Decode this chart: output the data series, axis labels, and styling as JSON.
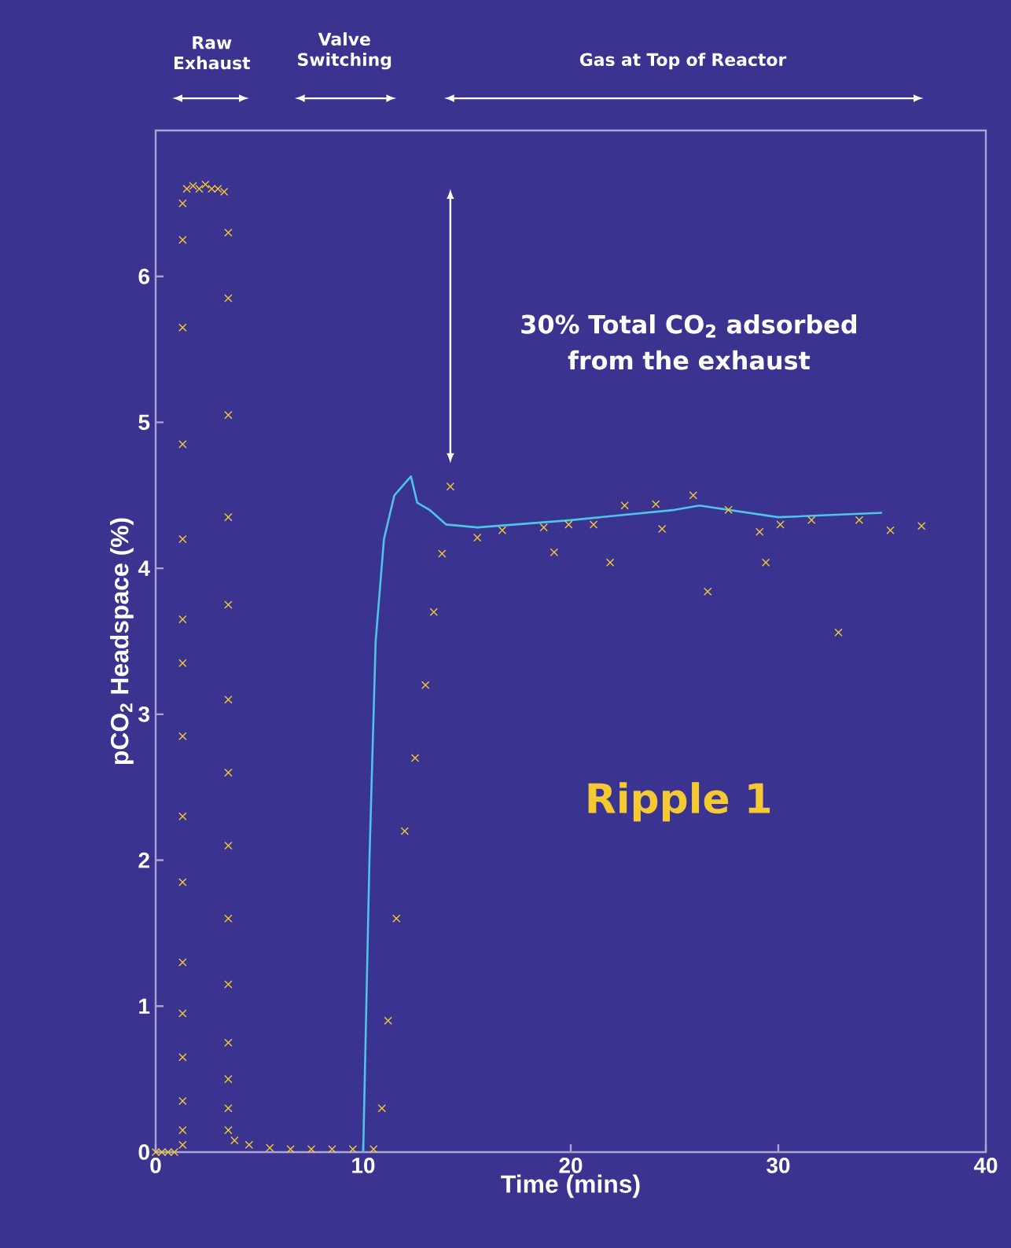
{
  "chart_data": {
    "type": "scatter",
    "xlabel": "Time (mins)",
    "ylabel": "pCO$_{2}$ Headspace (%)",
    "xlim": [
      0,
      40
    ],
    "ylim": [
      0,
      7
    ],
    "xticks": [
      0,
      10,
      20,
      30,
      40
    ],
    "yticks": [
      0,
      1,
      2,
      3,
      4,
      5,
      6
    ],
    "series": [
      {
        "marker": "cross",
        "color": "#f5c933",
        "x": [
          0,
          0.3,
          0.6,
          0.9,
          1.3,
          1.3,
          1.3,
          1.3,
          1.3,
          1.3,
          1.3,
          1.3,
          1.3,
          1.3,
          1.3,
          1.3,
          1.3,
          1.3,
          1.3,
          1.3,
          1.5,
          1.8,
          2.1,
          2.4,
          2.7,
          3.0,
          3.3,
          3.5,
          3.5,
          3.5,
          3.5,
          3.5,
          3.5,
          3.5,
          3.5,
          3.5,
          3.5,
          3.5,
          3.5,
          3.5,
          3.5,
          3.8,
          4.5,
          5.5,
          6.5,
          7.5,
          8.5,
          9.5,
          10.5,
          10.9,
          11.2,
          11.6,
          12.0,
          12.5,
          13.0,
          13.4,
          13.8,
          14.2,
          15.5,
          16.7,
          18.7,
          19.2,
          19.9,
          21.1,
          21.9,
          22.6,
          24.1,
          24.4,
          25.9,
          26.6,
          27.6,
          29.1,
          29.4,
          30.1,
          31.6,
          32.9,
          33.9,
          35.4,
          36.9
        ],
        "values": [
          0,
          0,
          0,
          0,
          0.05,
          0.15,
          0.35,
          0.65,
          0.95,
          1.3,
          1.85,
          2.3,
          2.85,
          3.35,
          3.65,
          4.2,
          4.85,
          5.65,
          6.25,
          6.5,
          6.6,
          6.62,
          6.6,
          6.63,
          6.6,
          6.6,
          6.58,
          6.3,
          5.85,
          5.05,
          4.35,
          3.75,
          3.1,
          2.6,
          2.1,
          1.6,
          1.15,
          0.75,
          0.5,
          0.3,
          0.15,
          0.08,
          0.05,
          0.03,
          0.02,
          0.02,
          0.02,
          0.02,
          0.02,
          0.3,
          0.9,
          1.6,
          2.2,
          2.7,
          3.2,
          3.7,
          4.1,
          4.56,
          4.21,
          4.26,
          4.28,
          4.11,
          4.3,
          4.3,
          4.04,
          4.43,
          4.44,
          4.27,
          4.5,
          3.84,
          4.4,
          4.25,
          4.04,
          4.3,
          4.33,
          3.56,
          4.33,
          4.26,
          4.29
        ]
      },
      {
        "type": "line",
        "color": "#4fc3e8",
        "x": [
          10.0,
          10.3,
          10.6,
          11.0,
          11.5,
          12.3,
          12.6,
          13.2,
          14.0,
          15.5,
          20,
          25,
          26.2,
          30,
          35
        ],
        "values": [
          0,
          2.0,
          3.5,
          4.2,
          4.5,
          4.63,
          4.45,
          4.4,
          4.3,
          4.28,
          4.33,
          4.4,
          4.43,
          4.35,
          4.38
        ]
      }
    ],
    "annotations": [
      "Raw Exhaust",
      "Valve Switching",
      "Gas at Top of Reactor",
      "30% Total CO$_{2}$ adsorbed from the exhaust",
      "Ripple 1"
    ]
  }
}
